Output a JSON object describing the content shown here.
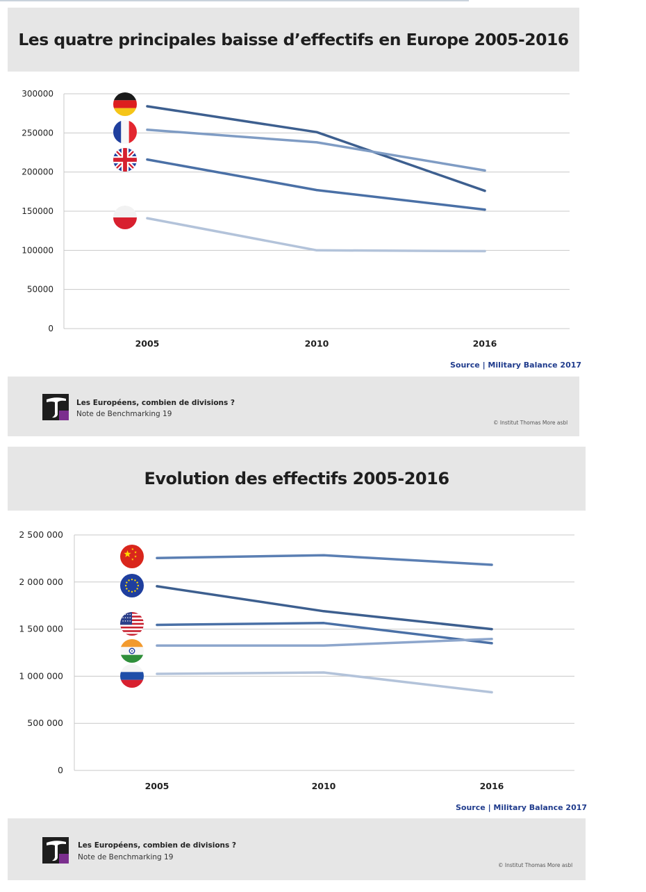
{
  "colors": {
    "band": "#e6e6e6",
    "grid": "#c8c8c8",
    "source": "#1f3b8c",
    "logo_purple": "#7b2f8e"
  },
  "charts": [
    {
      "title": "Les quatre principales baisse d’effectifs en Europe 2005-2016",
      "source_label": "Source",
      "source_text": "Military Balance 2017",
      "footer": {
        "logo_icon": "institut-thomas-more-logo",
        "title": "Les Européens, combien de divisions ?",
        "subtitle": "Note de Benchmarking 19",
        "copyright": "© Institut Thomas More asbl"
      }
    },
    {
      "title": "Evolution des effectifs 2005-2016",
      "source_label": "Source",
      "source_text": "Military Balance 2017",
      "footer": {
        "logo_icon": "institut-thomas-more-logo",
        "title": "Les Européens, combien de divisions ?",
        "subtitle": "Note de Benchmarking 19",
        "copyright": "© Institut Thomas More asbl"
      }
    }
  ],
  "chart_data": [
    {
      "type": "line",
      "title": "Les quatre principales baisse d’effectifs en Europe 2005-2016",
      "xlabel": "",
      "ylabel": "",
      "categories": [
        "2005",
        "2010",
        "2016"
      ],
      "y_ticks": [
        0,
        50000,
        100000,
        150000,
        200000,
        250000,
        300000
      ],
      "y_tick_labels": [
        "0",
        "50000",
        "100000",
        "150000",
        "200000",
        "250000",
        "300000"
      ],
      "ylim": [
        0,
        300000
      ],
      "grid": true,
      "legend": "flag icons at left of each line",
      "series": [
        {
          "flag": "germany-flag-icon",
          "color": "#3d5f8f",
          "values": [
            284000,
            251000,
            176000
          ]
        },
        {
          "flag": "france-flag-icon",
          "color": "#7f9cc4",
          "values": [
            254000,
            238000,
            202000
          ]
        },
        {
          "flag": "uk-flag-icon",
          "color": "#4a70a6",
          "values": [
            216000,
            177000,
            152000
          ]
        },
        {
          "flag": "poland-flag-icon",
          "color": "#b3c3da",
          "values": [
            141000,
            100000,
            99000
          ]
        }
      ]
    },
    {
      "type": "line",
      "title": "Evolution des effectifs 2005-2016",
      "xlabel": "",
      "ylabel": "",
      "categories": [
        "2005",
        "2010",
        "2016"
      ],
      "y_ticks": [
        0,
        500000,
        1000000,
        1500000,
        2000000,
        2500000
      ],
      "y_tick_labels": [
        "0",
        "500 000",
        "1 000 000",
        "1 500 000",
        "2 000 000",
        "2 500 000"
      ],
      "ylim": [
        0,
        2500000
      ],
      "grid": true,
      "legend": "flag icons at left of each line",
      "series": [
        {
          "flag": "china-flag-icon",
          "color": "#5b7fb3",
          "values": [
            2255000,
            2285000,
            2183000
          ]
        },
        {
          "flag": "eu-flag-icon",
          "color": "#3d5f8f",
          "values": [
            1955000,
            1690000,
            1500000
          ]
        },
        {
          "flag": "usa-flag-icon",
          "color": "#4a70a6",
          "values": [
            1545000,
            1565000,
            1350000
          ]
        },
        {
          "flag": "india-flag-icon",
          "color": "#8da6cc",
          "values": [
            1325000,
            1325000,
            1395000
          ]
        },
        {
          "flag": "russia-flag-icon",
          "color": "#b3c3da",
          "values": [
            1025000,
            1040000,
            830000
          ]
        }
      ]
    }
  ]
}
